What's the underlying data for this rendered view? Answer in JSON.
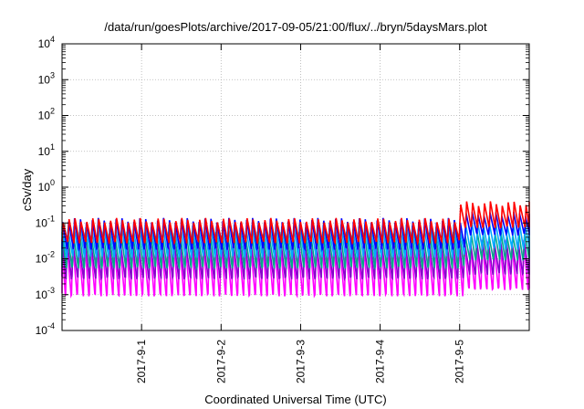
{
  "chart_data": {
    "type": "line",
    "title": "/data/run/goesPlots/archive/2017-09-05/21:00/flux/../bryn/5daysMars.plot",
    "xlabel": "Coordinated Universal Time (UTC)",
    "ylabel": "cSv/day",
    "yscale": "log",
    "ylim": [
      0.0001,
      10000
    ],
    "y_ticks": [
      {
        "base": "10",
        "exp": "-4",
        "value": 0.0001
      },
      {
        "base": "10",
        "exp": "-3",
        "value": 0.001
      },
      {
        "base": "10",
        "exp": "-2",
        "value": 0.01
      },
      {
        "base": "10",
        "exp": "-1",
        "value": 0.1
      },
      {
        "base": "10",
        "exp": "0",
        "value": 1
      },
      {
        "base": "10",
        "exp": "1",
        "value": 10
      },
      {
        "base": "10",
        "exp": "2",
        "value": 100
      },
      {
        "base": "10",
        "exp": "3",
        "value": 1000
      },
      {
        "base": "10",
        "exp": "4",
        "value": 10000
      }
    ],
    "xlim": [
      "2017-08-31T00:00",
      "2017-09-05T21:00"
    ],
    "x_ticks": [
      "2017-9-1",
      "2017-9-2",
      "2017-9-3",
      "2017-9-4",
      "2017-9-5"
    ],
    "grid": true,
    "legend": "none",
    "oscillation_periods_per_day": 13.4,
    "series": [
      {
        "color": "#ff0000",
        "peak_before": 0.12,
        "trough_before": 0.03,
        "peak_after": 0.35,
        "trough_after": 0.08
      },
      {
        "color": "#0000ff",
        "peak_before": 0.12,
        "trough_before": 0.02,
        "peak_after": 0.18,
        "trough_after": 0.05
      },
      {
        "color": "#00aaff",
        "peak_before": 0.08,
        "trough_before": 0.012,
        "peak_after": 0.1,
        "trough_after": 0.02
      },
      {
        "color": "#00aa88",
        "peak_before": 0.05,
        "trough_before": 0.006,
        "peak_after": 0.05,
        "trough_after": 0.01
      },
      {
        "color": "#8800cc",
        "peak_before": 0.03,
        "trough_before": 0.003,
        "peak_after": 0.03,
        "trough_after": 0.004
      },
      {
        "color": "#ff00ff",
        "peak_before": 0.03,
        "trough_before": 0.001,
        "peak_after": 0.03,
        "trough_after": 0.0015
      }
    ]
  }
}
